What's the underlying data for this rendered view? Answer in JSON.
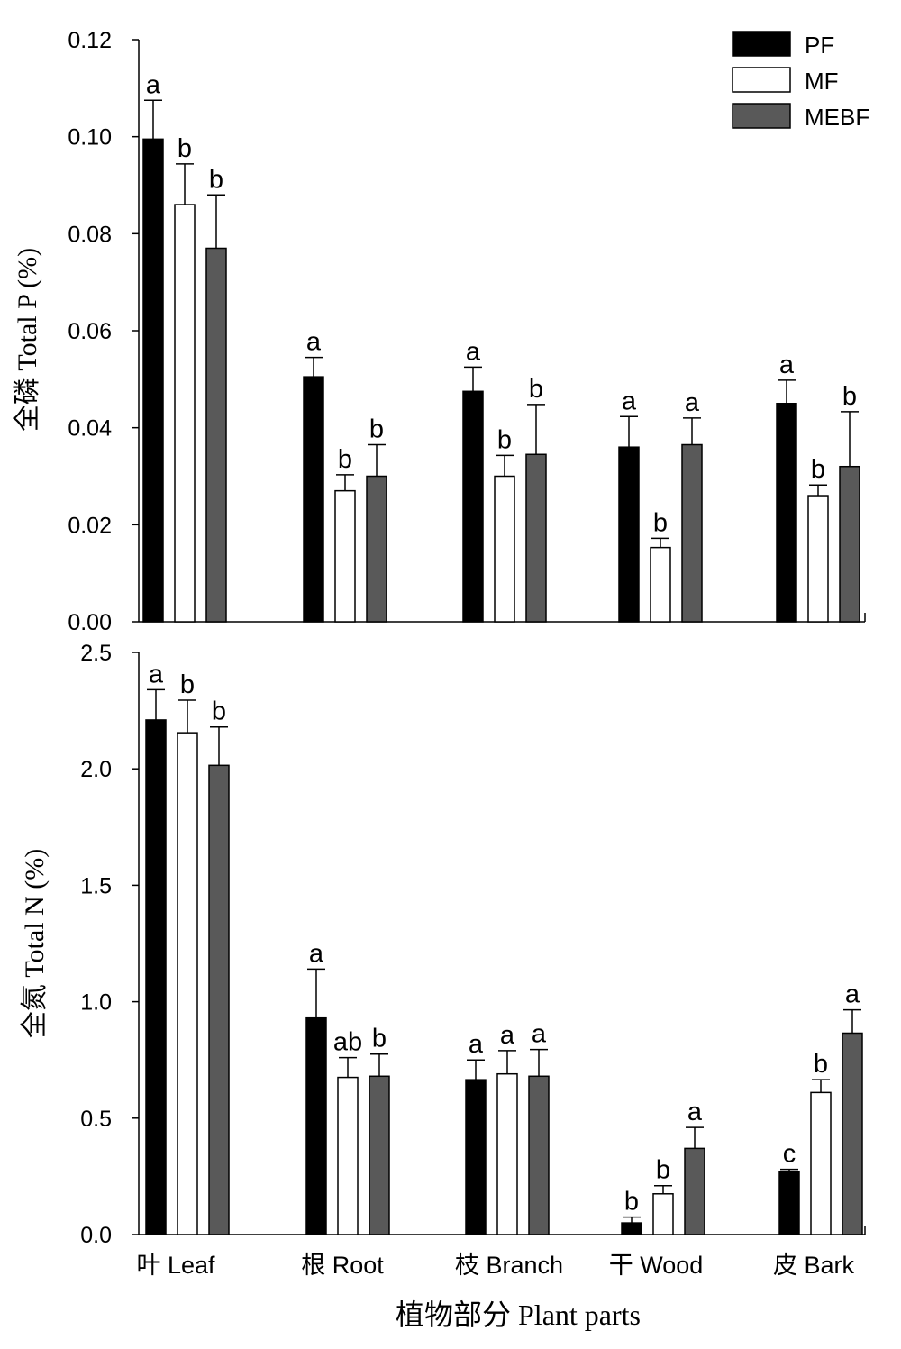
{
  "chart_data": [
    {
      "type": "bar",
      "ylabel": "全磷 Total P (%)",
      "ylim": [
        0,
        0.12
      ],
      "yticks": [
        "0.00",
        "0.02",
        "0.04",
        "0.06",
        "0.08",
        "0.10",
        "0.12"
      ],
      "categories": [
        "叶 Leaf",
        "根 Root",
        "枝 Branch",
        "干 Wood",
        "皮 Bark"
      ],
      "series": [
        {
          "name": "PF",
          "values": [
            0.0995,
            0.0505,
            0.0475,
            0.036,
            0.045
          ],
          "errors": [
            0.008,
            0.004,
            0.005,
            0.0063,
            0.0048
          ],
          "labels": [
            "a",
            "a",
            "a",
            "a",
            "a"
          ]
        },
        {
          "name": "MF",
          "values": [
            0.086,
            0.027,
            0.03,
            0.0153,
            0.026
          ],
          "errors": [
            0.0084,
            0.0033,
            0.0043,
            0.0019,
            0.0022
          ],
          "labels": [
            "b",
            "b",
            "b",
            "b",
            "b"
          ]
        },
        {
          "name": "MEBF",
          "values": [
            0.077,
            0.03,
            0.0345,
            0.0365,
            0.032
          ],
          "errors": [
            0.011,
            0.0065,
            0.0103,
            0.0055,
            0.0113
          ],
          "labels": [
            "b",
            "b",
            "b",
            "a",
            "b"
          ]
        }
      ],
      "legend": {
        "position": "top-right",
        "entries": [
          "PF",
          "MF",
          "MEBF"
        ]
      }
    },
    {
      "type": "bar",
      "ylabel": "全氮 Total N (%)",
      "xlabel": "植物部分 Plant parts",
      "ylim": [
        0,
        2.5
      ],
      "yticks": [
        "0.0",
        "0.5",
        "1.0",
        "1.5",
        "2.0",
        "2.5"
      ],
      "categories": [
        "叶 Leaf",
        "根 Root",
        "枝 Branch",
        "干 Wood",
        "皮 Bark"
      ],
      "series": [
        {
          "name": "PF",
          "values": [
            2.21,
            0.93,
            0.665,
            0.05,
            0.27
          ],
          "errors": [
            0.13,
            0.21,
            0.085,
            0.025,
            0.01
          ],
          "labels": [
            "a",
            "a",
            "a",
            "b",
            "c"
          ]
        },
        {
          "name": "MF",
          "values": [
            2.155,
            0.675,
            0.69,
            0.175,
            0.61
          ],
          "errors": [
            0.14,
            0.085,
            0.1,
            0.035,
            0.055
          ],
          "labels": [
            "b",
            "ab",
            "a",
            "b",
            "b"
          ]
        },
        {
          "name": "MEBF",
          "values": [
            2.015,
            0.68,
            0.68,
            0.37,
            0.865
          ],
          "errors": [
            0.165,
            0.095,
            0.115,
            0.09,
            0.1
          ],
          "labels": [
            "b",
            "b",
            "a",
            "a",
            "a"
          ]
        }
      ]
    }
  ],
  "style": {
    "PF": "#000000",
    "MF": "#ffffff",
    "MEBF": "#595959"
  }
}
